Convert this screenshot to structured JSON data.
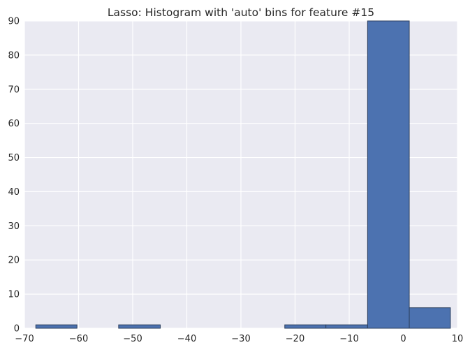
{
  "chart_data": {
    "type": "bar",
    "title": "Lasso: Histogram with 'auto' bins for feature #15",
    "xlabel": "",
    "ylabel": "",
    "xlim": [
      -70,
      10
    ],
    "ylim": [
      0,
      90
    ],
    "grid": true,
    "bins": [
      {
        "x0": -67.9,
        "x1": -60.3,
        "count": 1
      },
      {
        "x0": -60.3,
        "x1": -52.6,
        "count": 0
      },
      {
        "x0": -52.6,
        "x1": -44.9,
        "count": 1
      },
      {
        "x0": -44.9,
        "x1": -37.3,
        "count": 0
      },
      {
        "x0": -37.3,
        "x1": -29.6,
        "count": 0
      },
      {
        "x0": -29.6,
        "x1": -21.9,
        "count": 0
      },
      {
        "x0": -21.9,
        "x1": -14.3,
        "count": 1
      },
      {
        "x0": -14.3,
        "x1": -6.6,
        "count": 1
      },
      {
        "x0": -6.6,
        "x1": 1.1,
        "count": 90
      },
      {
        "x0": 1.1,
        "x1": 8.7,
        "count": 6
      }
    ],
    "xticks": [
      -70,
      -60,
      -50,
      -40,
      -30,
      -20,
      -10,
      0,
      10
    ],
    "xtick_labels": [
      "−70",
      "−60",
      "−50",
      "−40",
      "−30",
      "−20",
      "−10",
      "0",
      "10"
    ],
    "yticks": [
      0,
      10,
      20,
      30,
      40,
      50,
      60,
      70,
      80,
      90
    ],
    "ytick_labels": [
      "0",
      "10",
      "20",
      "30",
      "40",
      "50",
      "60",
      "70",
      "80",
      "90"
    ],
    "colors": {
      "bar_fill": "#4c72b0",
      "bar_edge": "#2b3f5e",
      "plot_background": "#eaeaf2",
      "grid": "#ffffff"
    }
  }
}
